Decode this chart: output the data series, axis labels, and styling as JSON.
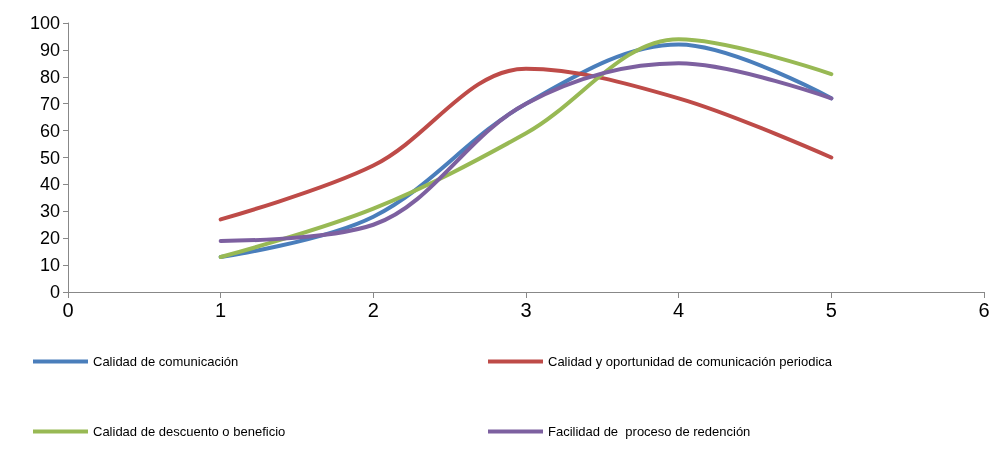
{
  "chart_data": {
    "type": "line",
    "x": [
      1,
      2,
      3,
      4,
      5
    ],
    "series": [
      {
        "name": "Calidad de comunicación",
        "color": "#4a7ebb",
        "values": [
          13,
          28,
          70,
          92,
          72
        ]
      },
      {
        "name": "Calidad y oportunidad de comunicación periodica",
        "color": "#be4b48",
        "values": [
          27,
          47,
          83,
          72,
          50
        ]
      },
      {
        "name": "Calidad de descuento o beneficio",
        "color": "#98b954",
        "values": [
          13,
          31,
          59,
          94,
          81
        ]
      },
      {
        "name": "Facilidad de  proceso de redención",
        "color": "#7d60a0",
        "values": [
          19,
          25,
          70,
          85,
          72
        ]
      }
    ],
    "xlim": [
      0,
      6
    ],
    "xticks": [
      0,
      1,
      2,
      3,
      4,
      5,
      6
    ],
    "ylim": [
      0,
      100
    ],
    "yticks": [
      0,
      10,
      20,
      30,
      40,
      50,
      60,
      70,
      80,
      90,
      100
    ],
    "grid": false,
    "legend": "bottom",
    "marker": "none",
    "line_style": "solid"
  }
}
